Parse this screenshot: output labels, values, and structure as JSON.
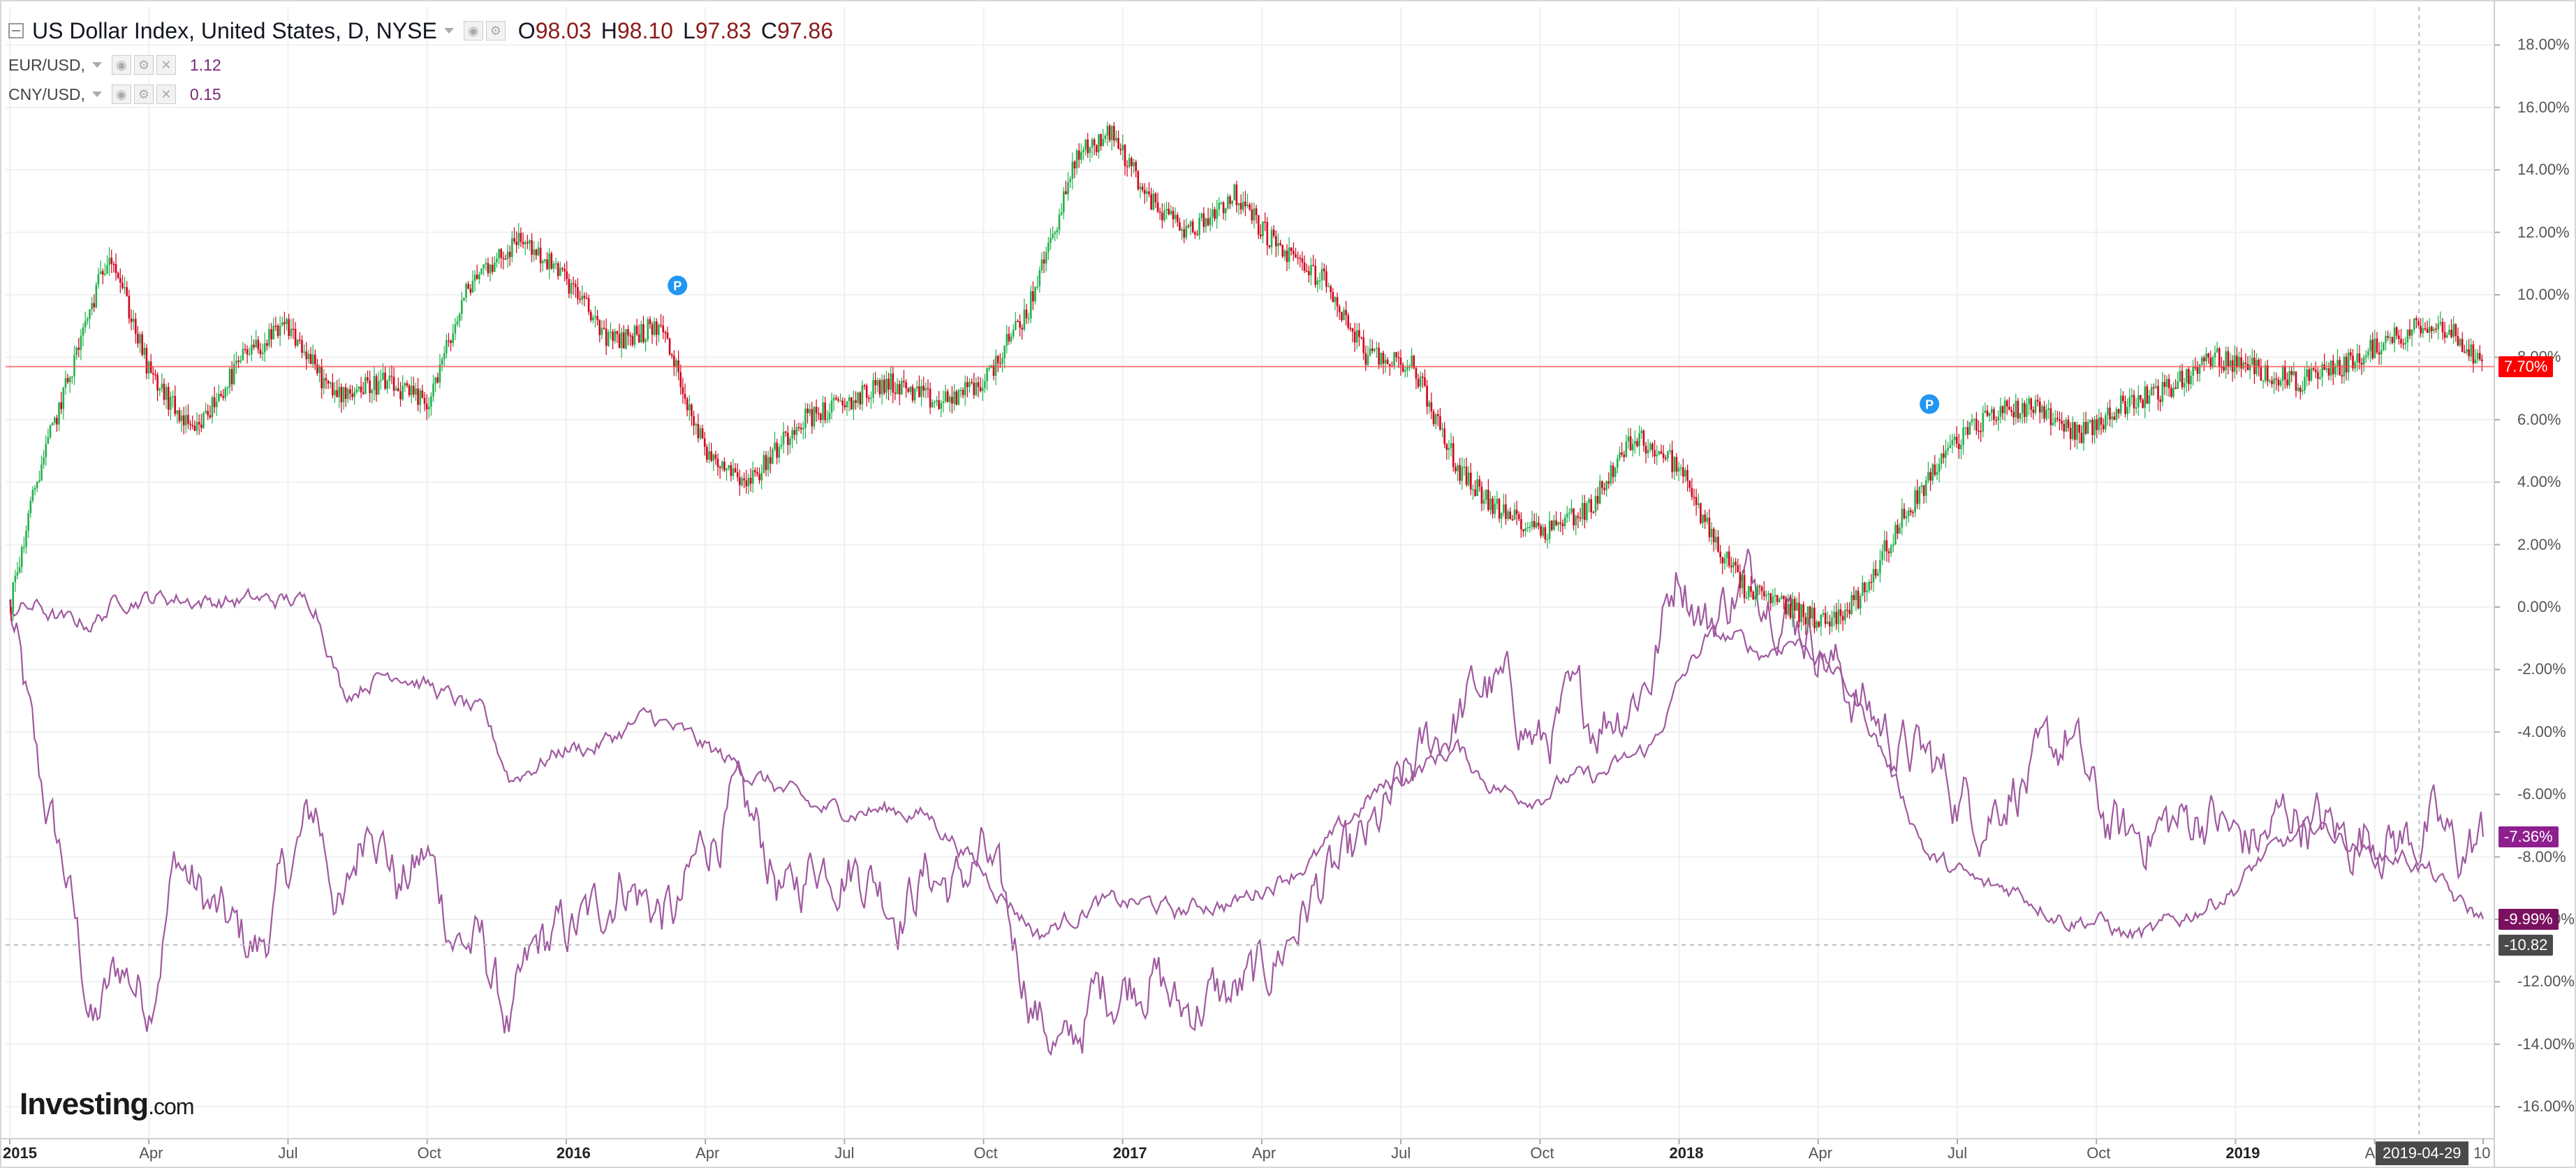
{
  "legend": {
    "main_title": "US Dollar Index, United States, D, NYSE",
    "ohlc": {
      "o_label": "O",
      "o": "98.03",
      "h_label": "H",
      "h": "98.10",
      "l_label": "L",
      "l": "97.83",
      "c_label": "C",
      "c": "97.86"
    },
    "series1_title": "EUR/USD,",
    "series1_value": "1.12",
    "series2_title": "CNY/USD,",
    "series2_value": "0.15"
  },
  "icons": [
    "collapse-icon",
    "dropdown-caret-icon",
    "settings-icon",
    "close-icon",
    "pivot-marker-icon"
  ],
  "colors": {
    "up_candle": "#22b14c",
    "down_candle": "#d0021b",
    "compare_line": "#a05aa0",
    "last_price_line": "#ff4d4d",
    "eur_tag": "#8e1f8e",
    "cny_tag": "#7a1060",
    "marker": "#2196f3"
  },
  "price_tags": {
    "dxy": "7.70%",
    "eur": "-7.36%",
    "cny": "-9.99%",
    "crosshair": "-10.82"
  },
  "markers": {
    "label": "P"
  },
  "crosshair_date": "2019-04-29",
  "logo": {
    "brand": "Investing",
    "domain": ".com"
  },
  "chart_data": {
    "type": "line",
    "title": "US Dollar Index, United States, D, NYSE",
    "y_axis": {
      "unit": "%",
      "ylim": [
        -17,
        19
      ],
      "tick_labels": [
        "18.00%",
        "16.00%",
        "14.00%",
        "12.00%",
        "10.00%",
        "8.00%",
        "6.00%",
        "4.00%",
        "2.00%",
        "0.00%",
        "-2.00%",
        "-4.00%",
        "-6.00%",
        "-8.00%",
        "-10.00%",
        "-12.00%",
        "-14.00%",
        "-16.00%"
      ],
      "ticks": [
        18,
        16,
        14,
        12,
        10,
        8,
        6,
        4,
        2,
        0,
        -2,
        -4,
        -6,
        -8,
        -10,
        -12,
        -14,
        -16
      ]
    },
    "x_axis": {
      "tick_labels": [
        "2015",
        "Apr",
        "Jul",
        "Oct",
        "2016",
        "Apr",
        "Jul",
        "Oct",
        "2017",
        "Apr",
        "Jul",
        "Oct",
        "2018",
        "Apr",
        "Jul",
        "Oct",
        "2019",
        "Apr",
        "10"
      ],
      "tick_times": [
        2015.0,
        2015.25,
        2015.5,
        2015.75,
        2016.0,
        2016.25,
        2016.5,
        2016.75,
        2017.0,
        2017.25,
        2017.5,
        2017.75,
        2018.0,
        2018.25,
        2018.5,
        2018.75,
        2019.0,
        2019.25,
        2019.445
      ]
    },
    "series": [
      {
        "name": "US Dollar Index",
        "x": [
          2015.0,
          2015.05,
          2015.1,
          2015.18,
          2015.25,
          2015.33,
          2015.42,
          2015.5,
          2015.58,
          2015.67,
          2015.75,
          2015.83,
          2015.92,
          2016.0,
          2016.08,
          2016.17,
          2016.25,
          2016.33,
          2016.42,
          2016.5,
          2016.58,
          2016.67,
          2016.75,
          2016.83,
          2016.92,
          2016.98,
          2017.05,
          2017.12,
          2017.2,
          2017.28,
          2017.36,
          2017.44,
          2017.52,
          2017.6,
          2017.68,
          2017.76,
          2017.84,
          2017.92,
          2018.0,
          2018.06,
          2018.12,
          2018.2,
          2018.26,
          2018.32,
          2018.4,
          2018.48,
          2018.56,
          2018.64,
          2018.72,
          2018.8,
          2018.88,
          2018.96,
          2019.04,
          2019.12,
          2019.2,
          2019.28,
          2019.36,
          2019.42,
          2019.445
        ],
        "y": [
          0,
          4.2,
          7.0,
          11.5,
          7.5,
          5.5,
          8.0,
          9.0,
          6.8,
          7.2,
          6.5,
          10.5,
          11.8,
          10.5,
          8.5,
          9.0,
          5.0,
          4.0,
          6.0,
          6.5,
          7.2,
          6.5,
          7.2,
          9.5,
          14.5,
          15.2,
          13.0,
          12.0,
          13.2,
          11.5,
          10.5,
          8.0,
          7.8,
          4.5,
          3.0,
          2.5,
          3.2,
          5.5,
          4.5,
          2.2,
          0.5,
          0.0,
          -0.5,
          0.2,
          2.8,
          5.0,
          6.2,
          6.5,
          5.5,
          6.5,
          7.0,
          8.0,
          7.6,
          7.2,
          7.8,
          8.6,
          9.2,
          8.3,
          7.7
        ]
      },
      {
        "name": "EUR/USD",
        "x": [
          2015.0,
          2015.05,
          2015.1,
          2015.15,
          2015.2,
          2015.25,
          2015.3,
          2015.35,
          2015.4,
          2015.45,
          2015.5,
          2015.55,
          2015.6,
          2015.65,
          2015.7,
          2015.75,
          2015.8,
          2015.85,
          2015.9,
          2015.95,
          2016.0,
          2016.05,
          2016.1,
          2016.15,
          2016.2,
          2016.25,
          2016.3,
          2016.35,
          2016.4,
          2016.45,
          2016.5,
          2016.55,
          2016.6,
          2016.65,
          2016.7,
          2016.75,
          2016.8,
          2016.85,
          2016.9,
          2016.95,
          2017.0,
          2017.05,
          2017.1,
          2017.15,
          2017.2,
          2017.25,
          2017.3,
          2017.35,
          2017.4,
          2017.45,
          2017.5,
          2017.55,
          2017.6,
          2017.65,
          2017.7,
          2017.75,
          2017.8,
          2017.85,
          2017.9,
          2017.95,
          2018.0,
          2018.05,
          2018.1,
          2018.15,
          2018.2,
          2018.25,
          2018.3,
          2018.35,
          2018.4,
          2018.45,
          2018.5,
          2018.55,
          2018.6,
          2018.65,
          2018.7,
          2018.75,
          2018.8,
          2018.85,
          2018.9,
          2018.95,
          2019.0,
          2019.05,
          2019.1,
          2019.15,
          2019.2,
          2019.25,
          2019.3,
          2019.35,
          2019.4,
          2019.445
        ],
        "y": [
          0,
          -5.5,
          -8.5,
          -13.5,
          -11.5,
          -12.5,
          -8.0,
          -9.5,
          -10.5,
          -11.0,
          -8.5,
          -6.5,
          -10.0,
          -6.0,
          -9.0,
          -8.0,
          -10.5,
          -11.0,
          -13.5,
          -11.0,
          -10.5,
          -10.0,
          -8.5,
          -9.5,
          -10.0,
          -7.5,
          -6.5,
          -7.5,
          -9.5,
          -8.0,
          -8.0,
          -8.5,
          -9.5,
          -8.5,
          -9.0,
          -8.0,
          -10.5,
          -13.0,
          -14.5,
          -12.5,
          -12.0,
          -11.5,
          -13.0,
          -12.5,
          -12.5,
          -12.0,
          -10.5,
          -9.0,
          -8.5,
          -7.5,
          -6.0,
          -4.5,
          -3.5,
          -2.5,
          -3.0,
          -4.5,
          -3.5,
          -3.5,
          -3.0,
          -2.0,
          1.5,
          -0.5,
          0.5,
          1.0,
          0.0,
          -1.0,
          -2.5,
          -3.5,
          -4.5,
          -5.0,
          -6.0,
          -6.5,
          -5.5,
          -5.5,
          -4.0,
          -6.5,
          -7.5,
          -7.0,
          -7.0,
          -6.5,
          -7.5,
          -7.5,
          -6.5,
          -7.0,
          -7.5,
          -7.0,
          -7.5,
          -7.0,
          -8.0,
          -7.36
        ]
      },
      {
        "name": "CNY/USD",
        "x": [
          2015.0,
          2015.05,
          2015.1,
          2015.15,
          2015.2,
          2015.25,
          2015.3,
          2015.35,
          2015.4,
          2015.45,
          2015.5,
          2015.55,
          2015.6,
          2015.65,
          2015.7,
          2015.75,
          2015.8,
          2015.85,
          2015.9,
          2015.95,
          2016.0,
          2016.05,
          2016.1,
          2016.15,
          2016.2,
          2016.25,
          2016.3,
          2016.35,
          2016.4,
          2016.45,
          2016.5,
          2016.55,
          2016.6,
          2016.65,
          2016.7,
          2016.75,
          2016.8,
          2016.85,
          2016.9,
          2016.95,
          2017.0,
          2017.05,
          2017.1,
          2017.15,
          2017.2,
          2017.25,
          2017.3,
          2017.35,
          2017.4,
          2017.45,
          2017.5,
          2017.55,
          2017.6,
          2017.65,
          2017.7,
          2017.75,
          2017.8,
          2017.85,
          2017.9,
          2017.95,
          2018.0,
          2018.05,
          2018.1,
          2018.15,
          2018.2,
          2018.25,
          2018.3,
          2018.35,
          2018.4,
          2018.45,
          2018.5,
          2018.55,
          2018.6,
          2018.65,
          2018.7,
          2018.75,
          2018.8,
          2018.85,
          2018.9,
          2018.95,
          2019.0,
          2019.05,
          2019.1,
          2019.15,
          2019.2,
          2019.25,
          2019.3,
          2019.35,
          2019.4,
          2019.445
        ],
        "y": [
          0,
          0,
          -0.5,
          -0.5,
          0.3,
          0.3,
          0.3,
          0.2,
          0.2,
          0.2,
          0.2,
          0.1,
          -2.8,
          -2.3,
          -2.0,
          -2.5,
          -3.0,
          -3.5,
          -5.5,
          -5.0,
          -4.5,
          -4.5,
          -4.0,
          -3.5,
          -4.0,
          -4.5,
          -5.0,
          -5.5,
          -6.0,
          -6.5,
          -6.5,
          -6.5,
          -6.5,
          -6.7,
          -7.5,
          -8.5,
          -9.5,
          -10.5,
          -10.0,
          -9.5,
          -9.5,
          -9.5,
          -9.8,
          -9.5,
          -9.5,
          -9.0,
          -8.5,
          -8.0,
          -7.0,
          -6.0,
          -5.5,
          -5.0,
          -4.5,
          -5.5,
          -6.0,
          -6.0,
          -5.5,
          -5.5,
          -5.0,
          -4.5,
          -2.5,
          -1.0,
          -1.0,
          -1.5,
          -1.0,
          -1.5,
          -2.5,
          -4.0,
          -6.0,
          -8.0,
          -8.5,
          -9.0,
          -9.0,
          -9.5,
          -10.0,
          -10.0,
          -10.5,
          -10.5,
          -10.0,
          -9.5,
          -9.0,
          -8.0,
          -7.5,
          -7.0,
          -7.5,
          -8.0,
          -8.0,
          -8.5,
          -9.5,
          -9.99
        ]
      }
    ],
    "grid": true,
    "legend_position": "top-left"
  }
}
